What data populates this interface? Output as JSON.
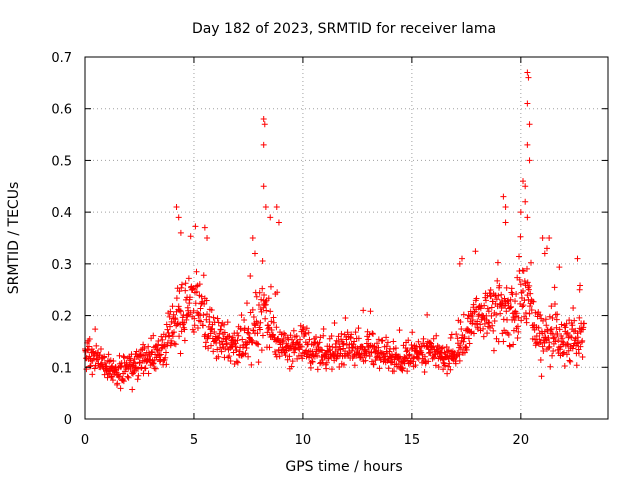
{
  "chart_data": {
    "type": "scatter",
    "title": "Day 182 of 2023, SRMTID for receiver lama",
    "xlabel": "GPS time / hours",
    "ylabel": "SRMTID / TECUs",
    "xlim": [
      0,
      24
    ],
    "ylim": [
      0,
      0.7
    ],
    "xticks": [
      0,
      5,
      10,
      15,
      20
    ],
    "xtick_labels": [
      "0",
      "5",
      "10",
      "15",
      "20"
    ],
    "yticks": [
      0,
      0.1,
      0.2,
      0.3,
      0.4,
      0.5,
      0.6,
      0.7
    ],
    "ytick_labels": [
      "0",
      "0.1",
      "0.2",
      "0.3",
      "0.4",
      "0.5",
      "0.6",
      "0.7"
    ],
    "grid": true,
    "marker": "+",
    "color": "#ff0000",
    "profile": {
      "x": [
        0,
        0.5,
        1,
        1.5,
        2,
        2.5,
        3,
        3.5,
        4,
        4.3,
        4.6,
        5,
        5.5,
        6,
        6.5,
        7,
        7.5,
        7.8,
        8.2,
        8.7,
        9,
        9.5,
        10,
        10.5,
        11,
        11.5,
        12,
        12.5,
        13,
        13.5,
        14,
        14.5,
        15,
        15.5,
        16,
        16.5,
        17,
        17.5,
        18,
        18.5,
        19,
        19.3,
        19.6,
        20,
        20.3,
        20.6,
        21,
        21.5,
        22,
        22.5,
        22.9
      ],
      "y": [
        0.13,
        0.12,
        0.1,
        0.09,
        0.1,
        0.11,
        0.12,
        0.13,
        0.17,
        0.2,
        0.21,
        0.22,
        0.19,
        0.16,
        0.15,
        0.14,
        0.15,
        0.18,
        0.2,
        0.17,
        0.15,
        0.14,
        0.14,
        0.13,
        0.13,
        0.13,
        0.14,
        0.14,
        0.14,
        0.13,
        0.12,
        0.11,
        0.12,
        0.13,
        0.13,
        0.12,
        0.13,
        0.16,
        0.2,
        0.2,
        0.21,
        0.2,
        0.19,
        0.24,
        0.23,
        0.18,
        0.16,
        0.16,
        0.15,
        0.16,
        0.16
      ],
      "spread": [
        0.03,
        0.03,
        0.03,
        0.03,
        0.03,
        0.03,
        0.03,
        0.04,
        0.05,
        0.06,
        0.06,
        0.06,
        0.05,
        0.05,
        0.04,
        0.04,
        0.05,
        0.06,
        0.06,
        0.05,
        0.04,
        0.04,
        0.04,
        0.03,
        0.03,
        0.03,
        0.03,
        0.03,
        0.03,
        0.03,
        0.03,
        0.03,
        0.03,
        0.03,
        0.03,
        0.03,
        0.03,
        0.04,
        0.05,
        0.05,
        0.06,
        0.06,
        0.05,
        0.07,
        0.07,
        0.05,
        0.05,
        0.05,
        0.05,
        0.05,
        0.05
      ],
      "points_per_hour": 60,
      "x_end": 22.9
    },
    "notable_points": [
      {
        "x": 4.2,
        "y": 0.41
      },
      {
        "x": 4.3,
        "y": 0.39
      },
      {
        "x": 4.4,
        "y": 0.36
      },
      {
        "x": 5.5,
        "y": 0.37
      },
      {
        "x": 5.6,
        "y": 0.35
      },
      {
        "x": 7.7,
        "y": 0.35
      },
      {
        "x": 7.8,
        "y": 0.32
      },
      {
        "x": 8.2,
        "y": 0.58
      },
      {
        "x": 8.25,
        "y": 0.57
      },
      {
        "x": 8.2,
        "y": 0.53
      },
      {
        "x": 8.2,
        "y": 0.45
      },
      {
        "x": 8.3,
        "y": 0.41
      },
      {
        "x": 8.5,
        "y": 0.39
      },
      {
        "x": 8.8,
        "y": 0.41
      },
      {
        "x": 8.9,
        "y": 0.38
      },
      {
        "x": 17.3,
        "y": 0.31
      },
      {
        "x": 17.2,
        "y": 0.3
      },
      {
        "x": 19.2,
        "y": 0.43
      },
      {
        "x": 19.3,
        "y": 0.41
      },
      {
        "x": 19.3,
        "y": 0.38
      },
      {
        "x": 20.0,
        "y": 0.4
      },
      {
        "x": 20.1,
        "y": 0.46
      },
      {
        "x": 20.2,
        "y": 0.45
      },
      {
        "x": 20.2,
        "y": 0.42
      },
      {
        "x": 20.3,
        "y": 0.67
      },
      {
        "x": 20.35,
        "y": 0.66
      },
      {
        "x": 20.3,
        "y": 0.61
      },
      {
        "x": 20.4,
        "y": 0.57
      },
      {
        "x": 20.3,
        "y": 0.53
      },
      {
        "x": 20.4,
        "y": 0.5
      },
      {
        "x": 20.3,
        "y": 0.39
      },
      {
        "x": 21.0,
        "y": 0.35
      },
      {
        "x": 21.3,
        "y": 0.35
      },
      {
        "x": 21.2,
        "y": 0.33
      },
      {
        "x": 21.1,
        "y": 0.32
      },
      {
        "x": 22.6,
        "y": 0.31
      },
      {
        "x": 22.7,
        "y": 0.25
      }
    ]
  }
}
